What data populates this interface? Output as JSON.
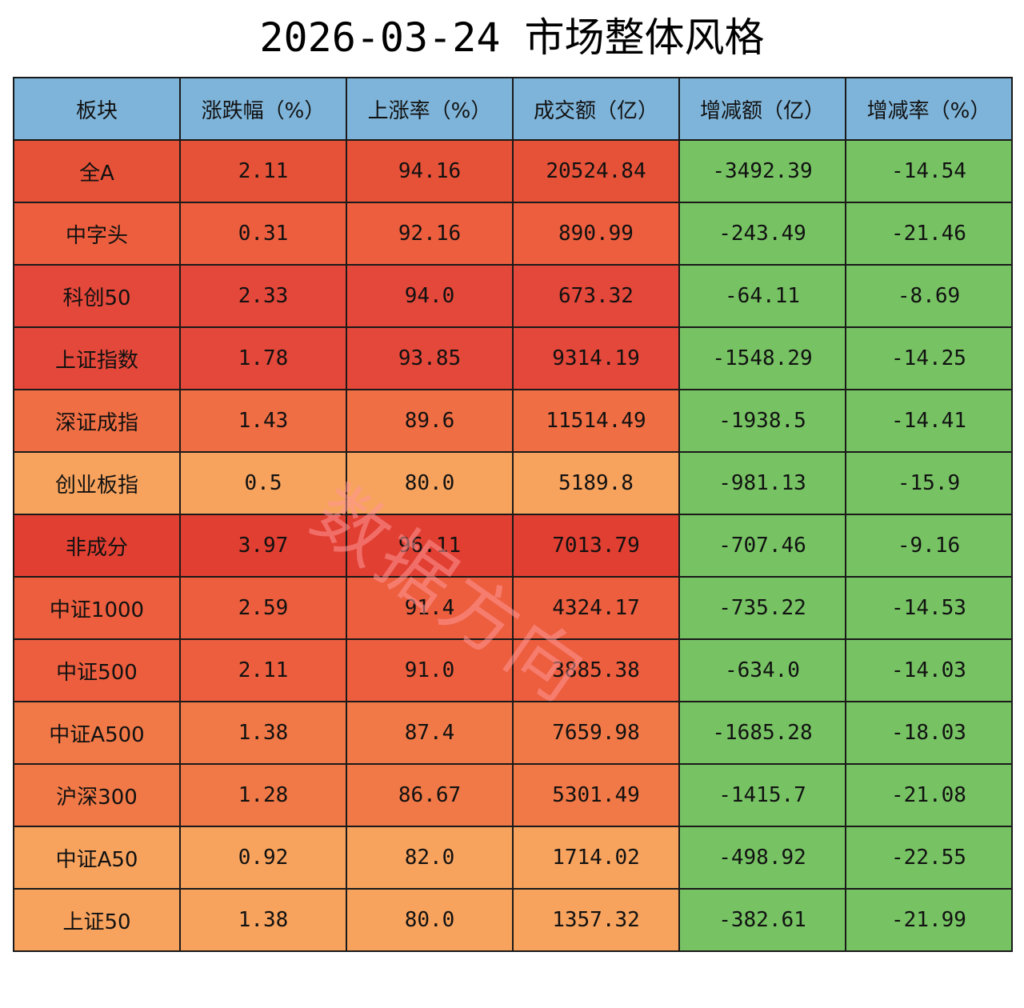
{
  "chart_data": {
    "type": "table",
    "title": "2026-03-24 市场整体风格",
    "columns": [
      "板块",
      "涨跌幅（%）",
      "上涨率（%）",
      "成交额（亿）",
      "增减额（亿）",
      "增减率（%）"
    ],
    "rows": [
      [
        "全A",
        "2.11",
        "94.16",
        "20524.84",
        "-3492.39",
        "-14.54"
      ],
      [
        "中字头",
        "0.31",
        "92.16",
        "890.99",
        "-243.49",
        "-21.46"
      ],
      [
        "科创50",
        "2.33",
        "94.0",
        "673.32",
        "-64.11",
        "-8.69"
      ],
      [
        "上证指数",
        "1.78",
        "93.85",
        "9314.19",
        "-1548.29",
        "-14.25"
      ],
      [
        "深证成指",
        "1.43",
        "89.6",
        "11514.49",
        "-1938.5",
        "-14.41"
      ],
      [
        "创业板指",
        "0.5",
        "80.0",
        "5189.8",
        "-981.13",
        "-15.9"
      ],
      [
        "非成分",
        "3.97",
        "96.11",
        "7013.79",
        "-707.46",
        "-9.16"
      ],
      [
        "中证1000",
        "2.59",
        "91.4",
        "4324.17",
        "-735.22",
        "-14.53"
      ],
      [
        "中证500",
        "2.11",
        "91.0",
        "3885.38",
        "-634.0",
        "-14.03"
      ],
      [
        "中证A500",
        "1.38",
        "87.4",
        "7659.98",
        "-1685.28",
        "-18.03"
      ],
      [
        "沪深300",
        "1.28",
        "86.67",
        "5301.49",
        "-1415.7",
        "-21.08"
      ],
      [
        "中证A50",
        "0.92",
        "82.0",
        "1714.02",
        "-498.92",
        "-22.55"
      ],
      [
        "上证50",
        "1.38",
        "80.0",
        "1357.32",
        "-382.61",
        "-21.99"
      ]
    ],
    "row_colors": [
      "#e65238",
      "#ec5e3e",
      "#e4483a",
      "#e4483a",
      "#f06e44",
      "#f7a35e",
      "#e13f32",
      "#ec5e3e",
      "#ec5e3e",
      "#f17947",
      "#f17947",
      "#f7a35e",
      "#f7a35e"
    ],
    "header_color": "#7eb4d9",
    "negative_color": "#77c364",
    "watermark": "数据方向"
  }
}
